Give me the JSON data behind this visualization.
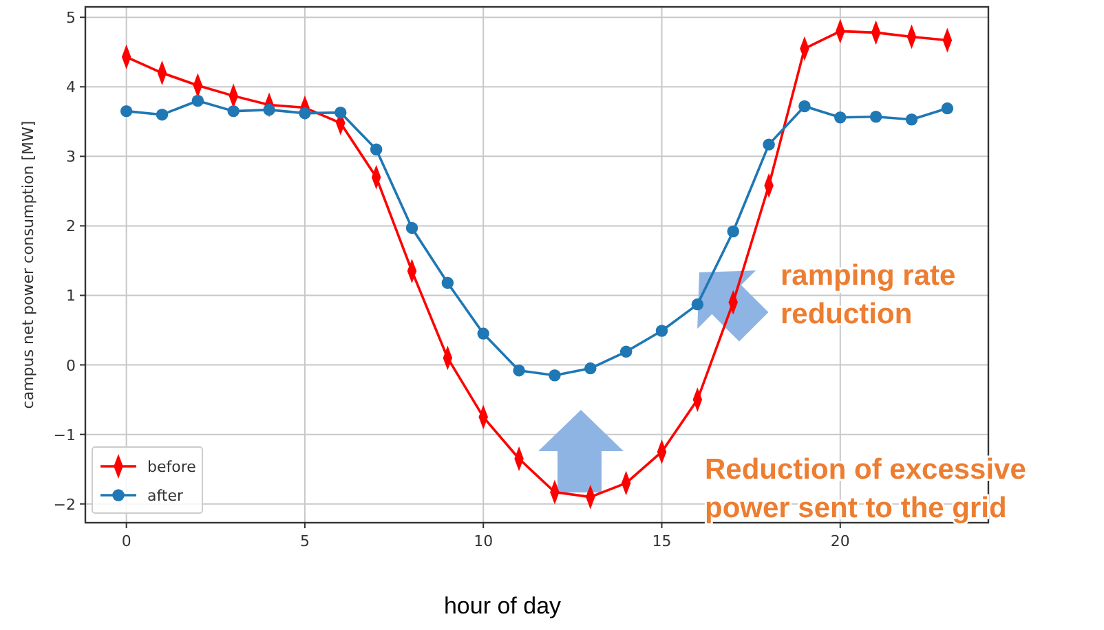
{
  "chart_data": {
    "type": "line",
    "xlabel": "hour of day",
    "ylabel": "campus net power consumption [MW]",
    "x": [
      0,
      1,
      2,
      3,
      4,
      5,
      6,
      7,
      8,
      9,
      10,
      11,
      12,
      13,
      14,
      15,
      16,
      17,
      18,
      19,
      20,
      21,
      22,
      23
    ],
    "series": [
      {
        "name": "before",
        "color": "#ff0000",
        "marker": "diamond",
        "values": [
          4.43,
          4.2,
          4.02,
          3.87,
          3.74,
          3.7,
          3.48,
          2.7,
          1.35,
          0.1,
          -0.75,
          -1.35,
          -1.83,
          -1.9,
          -1.7,
          -1.25,
          -0.5,
          0.9,
          2.58,
          4.55,
          4.8,
          4.78,
          4.72,
          4.67
        ]
      },
      {
        "name": "after",
        "color": "#1f77b4",
        "marker": "circle",
        "values": [
          3.65,
          3.6,
          3.8,
          3.65,
          3.67,
          3.62,
          3.63,
          3.1,
          1.97,
          1.18,
          0.45,
          -0.08,
          -0.15,
          -0.05,
          0.19,
          0.49,
          0.87,
          1.92,
          3.17,
          3.72,
          3.56,
          3.57,
          3.53,
          3.69
        ]
      }
    ],
    "xlim": [
      -1.15,
      24.15
    ],
    "ylim": [
      -2.27,
      5.15
    ],
    "xticks": [
      0,
      5,
      10,
      15,
      20
    ],
    "yticks": [
      -2,
      -1,
      0,
      1,
      2,
      3,
      4,
      5
    ],
    "grid": true,
    "legend": "bottom left",
    "line_style": "solid",
    "annotations": [
      "ramping rate reduction",
      "Reduction of excessive power sent to the grid"
    ]
  }
}
